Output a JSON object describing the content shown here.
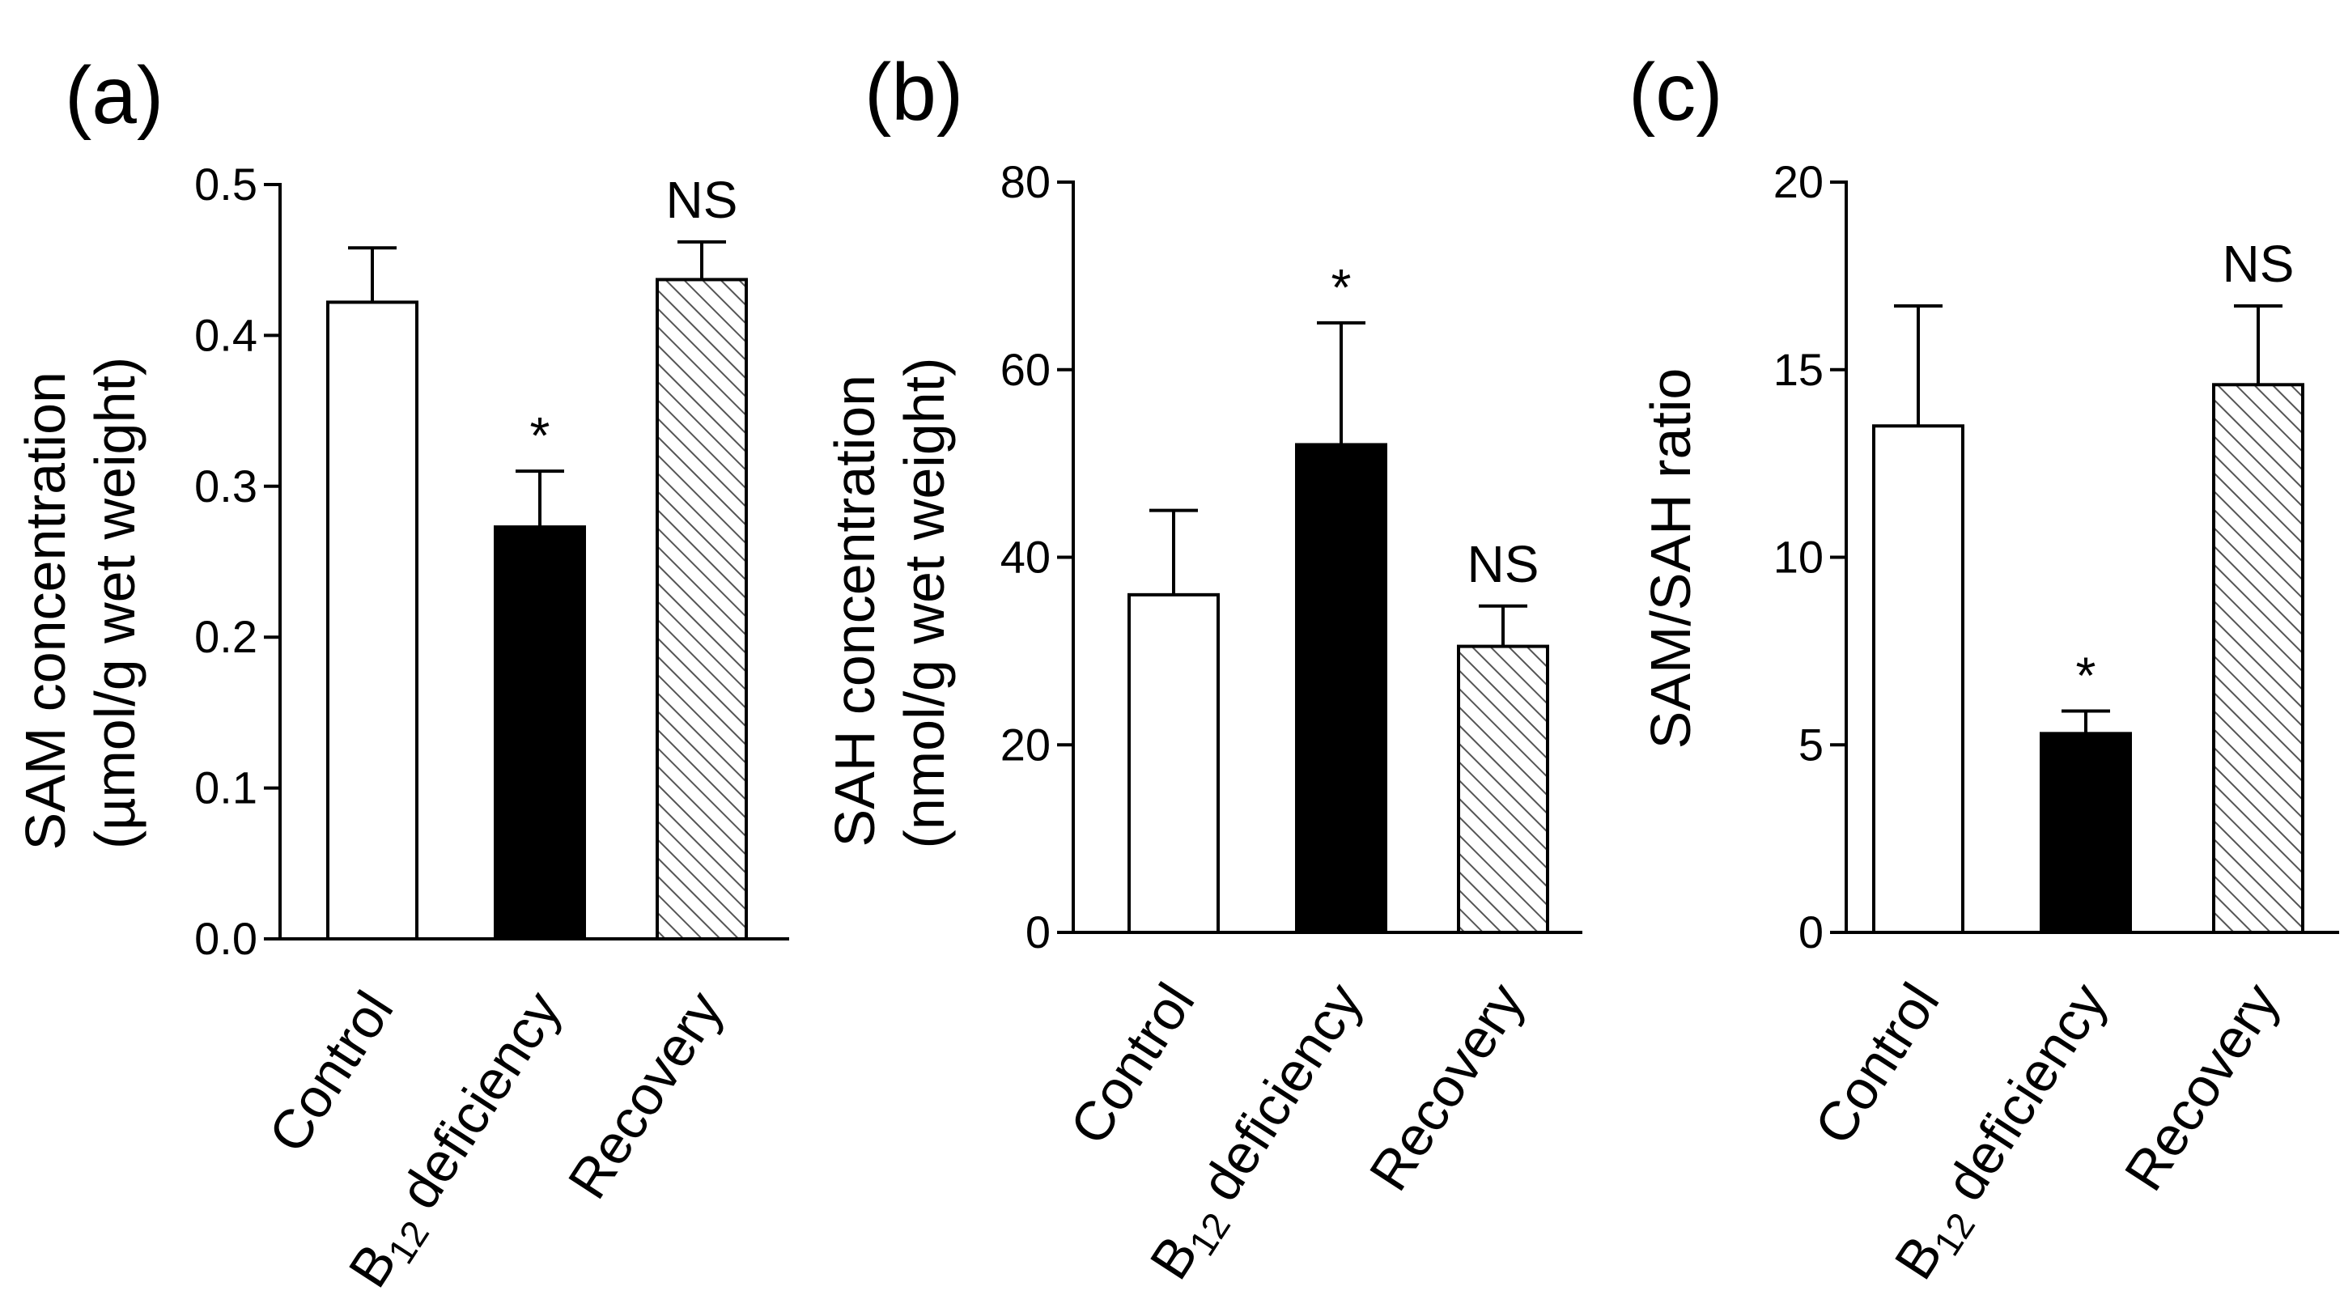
{
  "chart_data": [
    {
      "type": "bar",
      "panel_label": "(a)",
      "ylabel_line1": "SAM concentration",
      "ylabel_line2": "(µmol/g wet weight)",
      "ylim": [
        0,
        0.5
      ],
      "yticks": [
        "0.0",
        "0.1",
        "0.2",
        "0.3",
        "0.4",
        "0.5"
      ],
      "tick_values": [
        0,
        0.1,
        0.2,
        0.3,
        0.4,
        0.5
      ],
      "categories": [
        "Control",
        "B12 deficiency",
        "Recovery"
      ],
      "category_labels": [
        {
          "main": "Control",
          "sub": "",
          "rest": ""
        },
        {
          "main": "B",
          "sub": "12",
          "rest": " deficiency"
        },
        {
          "main": "Recovery",
          "sub": "",
          "rest": ""
        }
      ],
      "values": [
        0.422,
        0.273,
        0.437
      ],
      "errors": [
        0.036,
        0.037,
        0.025
      ],
      "fills": [
        "white",
        "black",
        "hatch"
      ],
      "annotations": [
        "",
        "*",
        "NS"
      ]
    },
    {
      "type": "bar",
      "panel_label": "(b)",
      "ylabel_line1": "SAH concentration",
      "ylabel_line2": "(nmol/g wet weight)",
      "ylim": [
        0,
        80
      ],
      "yticks": [
        "0",
        "20",
        "40",
        "60",
        "80"
      ],
      "tick_values": [
        0,
        20,
        40,
        60,
        80
      ],
      "categories": [
        "Control",
        "B12 deficiency",
        "Recovery"
      ],
      "category_labels": [
        {
          "main": "Control",
          "sub": "",
          "rest": ""
        },
        {
          "main": "B",
          "sub": "12",
          "rest": " deficiency"
        },
        {
          "main": "Recovery",
          "sub": "",
          "rest": ""
        }
      ],
      "values": [
        36,
        52,
        30.5
      ],
      "errors": [
        9,
        13,
        4.3
      ],
      "fills": [
        "white",
        "black",
        "hatch"
      ],
      "annotations": [
        "",
        "*",
        "NS"
      ]
    },
    {
      "type": "bar",
      "panel_label": "(c)",
      "ylabel_line1": "SAM/SAH ratio",
      "ylabel_line2": "",
      "ylim": [
        0,
        20
      ],
      "yticks": [
        "0",
        "5",
        "10",
        "15",
        "20"
      ],
      "tick_values": [
        0,
        5,
        10,
        15,
        20
      ],
      "categories": [
        "Control",
        "B12 deficiency",
        "Recovery"
      ],
      "category_labels": [
        {
          "main": "Control",
          "sub": "",
          "rest": ""
        },
        {
          "main": "B",
          "sub": "12",
          "rest": " deficiency"
        },
        {
          "main": "Recovery",
          "sub": "",
          "rest": ""
        }
      ],
      "values": [
        13.5,
        5.3,
        14.6
      ],
      "errors": [
        3.2,
        0.6,
        2.1
      ],
      "fills": [
        "white",
        "black",
        "hatch"
      ],
      "annotations": [
        "",
        "*",
        "NS"
      ]
    }
  ],
  "colors": {
    "axis": "#000000",
    "bar_black": "#000000",
    "bar_white": "#ffffff",
    "hatch_line": "#555555"
  }
}
